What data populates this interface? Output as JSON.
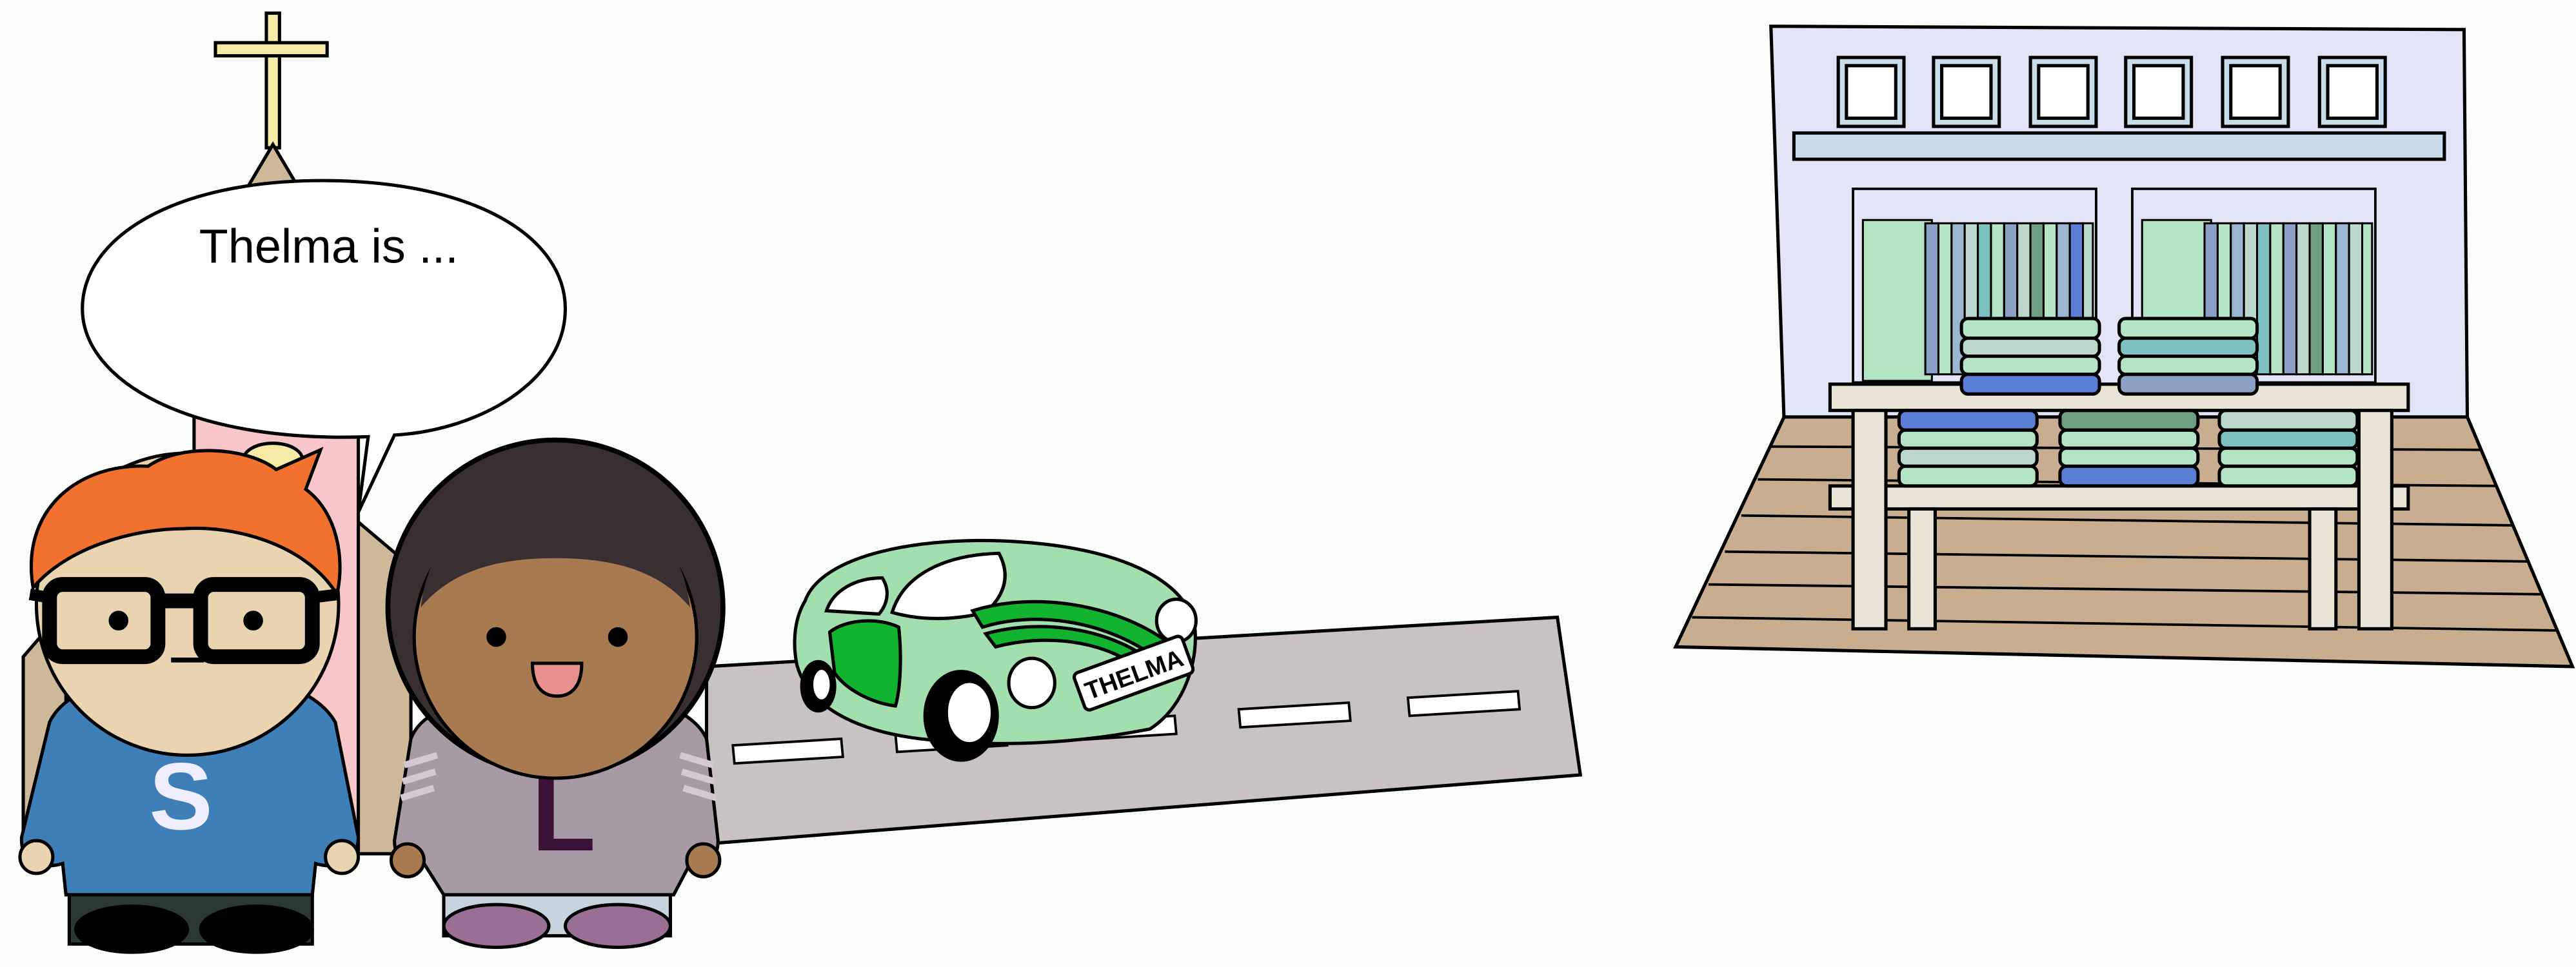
{
  "speech_bubble": {
    "text": "Thelma is ..."
  },
  "person_left": {
    "shirt_letter": "S"
  },
  "person_right": {
    "shirt_letter": "L"
  },
  "car": {
    "plate_text": "THELMA"
  },
  "colors": {
    "background": "#fbfdfb",
    "road": "#c8c2c2",
    "car": "#a3dfae",
    "car_accent": "#12b32e",
    "shirt_s": "#3f7fb8",
    "shirt_l": "#a89aa4",
    "hair_orange": "#f0722e",
    "hair_dark": "#3a2f30",
    "store_wall": "#e4e4f8",
    "store_floor": "#c9ad91"
  }
}
